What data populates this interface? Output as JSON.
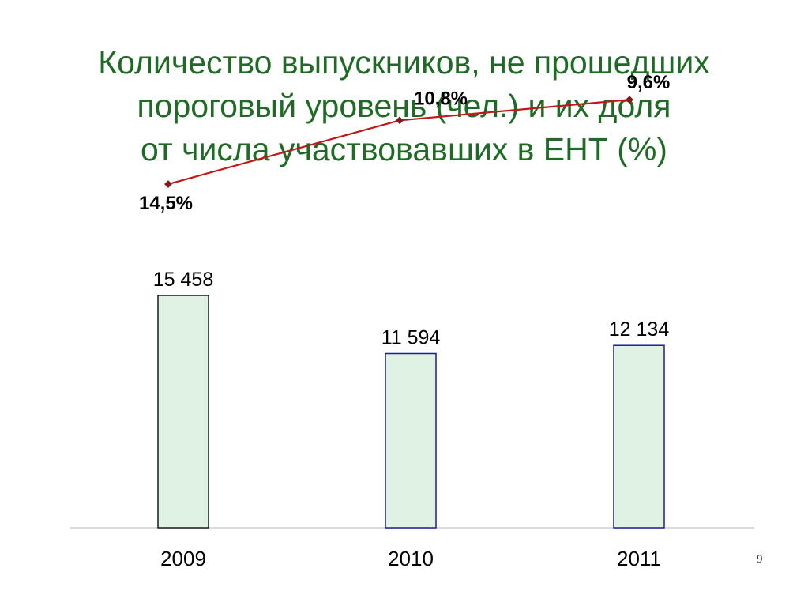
{
  "slide": {
    "title_lines": [
      "Количество выпускников, не прошедших",
      "пороговый уровень (чел.) и их доля",
      "от числа участвовавших в ЕНТ (%)"
    ],
    "page_number": "9"
  },
  "colors": {
    "title": "#1f6b25",
    "bar_fill": "#dff2e3",
    "bar_stroke_2009": "#1a1a1a",
    "bar_stroke_other": "#1b1f8a",
    "line": "#c01818",
    "marker": "#8a1a1a",
    "baseline": "#d0d0d0"
  },
  "chart_data": {
    "type": "bar",
    "categories": [
      "2009",
      "2010",
      "2011"
    ],
    "series": [
      {
        "type": "bar",
        "values": [
          15458,
          11594,
          12134
        ],
        "labels": [
          "15 458",
          "11 594",
          "12 134"
        ]
      },
      {
        "type": "line",
        "values": [
          14.5,
          10.8,
          9.6
        ],
        "labels": [
          "14,5%",
          "10,8%",
          "9,6%"
        ]
      }
    ],
    "ylim": [
      0,
      17500
    ],
    "legend": "none",
    "grid": false
  }
}
